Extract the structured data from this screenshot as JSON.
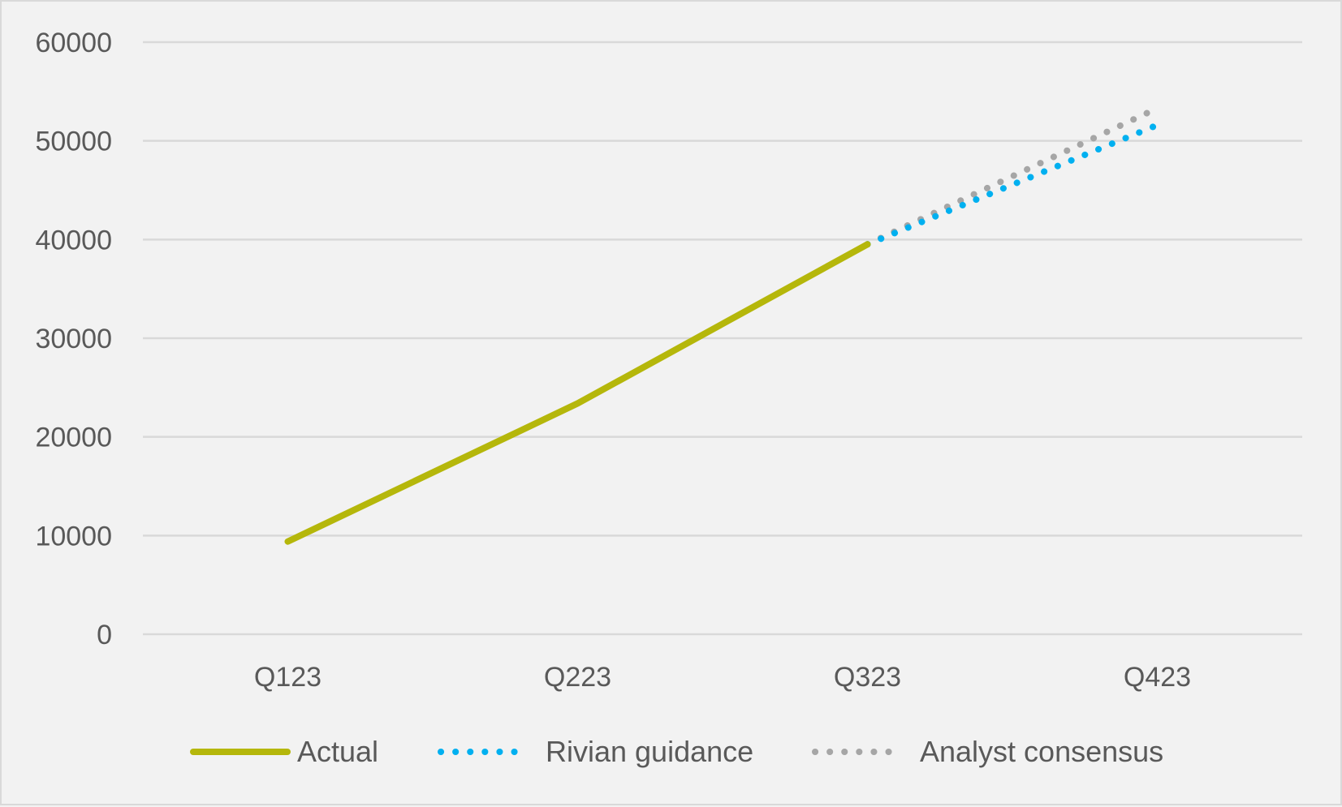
{
  "chart_data": {
    "type": "line",
    "title": "",
    "xlabel": "",
    "ylabel": "",
    "categories": [
      "Q123",
      "Q223",
      "Q323",
      "Q423"
    ],
    "y_ticks": [
      "0",
      "10000",
      "20000",
      "30000",
      "40000",
      "50000",
      "60000"
    ],
    "ylim": [
      0,
      60000
    ],
    "grid": true,
    "legend_position": "bottom",
    "series": [
      {
        "name": "Actual",
        "values": [
          9395,
          23391,
          39518,
          null
        ],
        "color": "#b5b70b",
        "style": "solid"
      },
      {
        "name": "Rivian guidance",
        "values": [
          null,
          null,
          39518,
          51600
        ],
        "color": "#00b0f0",
        "style": "dotted"
      },
      {
        "name": "Analyst consensus",
        "values": [
          null,
          null,
          39518,
          53300
        ],
        "color": "#a6a6a6",
        "style": "dotted"
      }
    ]
  }
}
